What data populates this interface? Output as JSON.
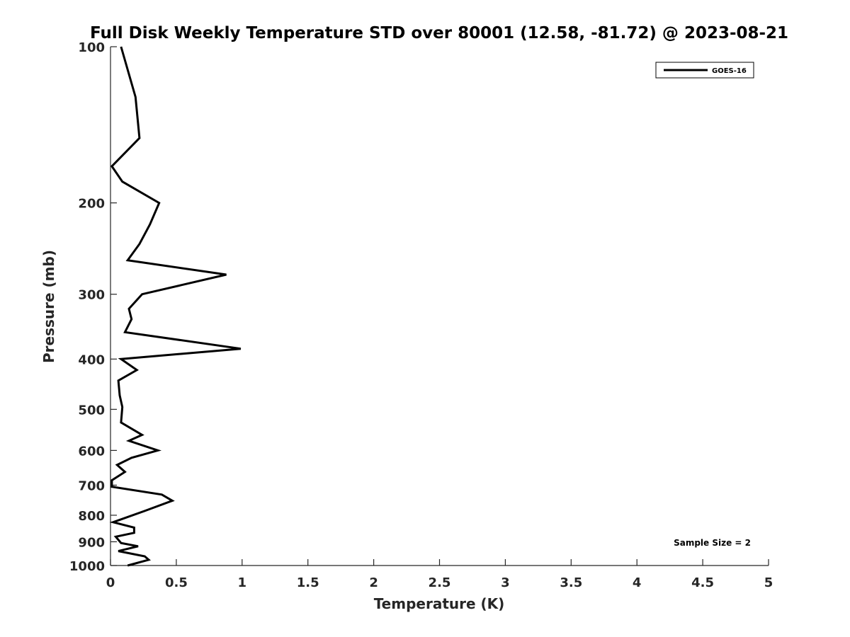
{
  "chart_data": {
    "type": "line",
    "title": "Full Disk Weekly Temperature STD over 80001 (12.58, -81.72) @ 2023-08-21",
    "xlabel": "Temperature (K)",
    "ylabel": "Pressure (mb)",
    "xlim": [
      0,
      5
    ],
    "ylim": [
      100,
      1000
    ],
    "y_scale": "log",
    "y_reversed": true,
    "x_ticks": [
      0,
      0.5,
      1,
      1.5,
      2,
      2.5,
      3,
      3.5,
      4,
      4.5,
      5
    ],
    "x_tick_labels": [
      "0",
      "0.5",
      "1",
      "1.5",
      "2",
      "2.5",
      "3",
      "3.5",
      "4",
      "4.5",
      "5"
    ],
    "y_ticks": [
      100,
      200,
      300,
      400,
      500,
      600,
      700,
      800,
      900,
      1000
    ],
    "y_tick_labels": [
      "100",
      "200",
      "300",
      "400",
      "500",
      "600",
      "700",
      "800",
      "900",
      "1000"
    ],
    "grid": false,
    "legend_position": "top-right",
    "series": [
      {
        "name": "GOES-16",
        "color": "#000000",
        "points": [
          [
            0.08,
            100
          ],
          [
            0.19,
            125
          ],
          [
            0.22,
            150
          ],
          [
            0.01,
            170
          ],
          [
            0.09,
            182
          ],
          [
            0.37,
            200
          ],
          [
            0.3,
            220
          ],
          [
            0.22,
            240
          ],
          [
            0.13,
            258
          ],
          [
            0.88,
            275
          ],
          [
            0.24,
            300
          ],
          [
            0.14,
            320
          ],
          [
            0.16,
            335
          ],
          [
            0.11,
            355
          ],
          [
            0.99,
            382
          ],
          [
            0.08,
            400
          ],
          [
            0.2,
            420
          ],
          [
            0.06,
            440
          ],
          [
            0.07,
            470
          ],
          [
            0.09,
            495
          ],
          [
            0.08,
            530
          ],
          [
            0.24,
            560
          ],
          [
            0.14,
            575
          ],
          [
            0.36,
            600
          ],
          [
            0.16,
            620
          ],
          [
            0.05,
            640
          ],
          [
            0.11,
            660
          ],
          [
            0.01,
            685
          ],
          [
            0.01,
            705
          ],
          [
            0.39,
            730
          ],
          [
            0.47,
            750
          ],
          [
            0.26,
            785
          ],
          [
            0.02,
            825
          ],
          [
            0.18,
            845
          ],
          [
            0.18,
            865
          ],
          [
            0.04,
            880
          ],
          [
            0.08,
            905
          ],
          [
            0.21,
            918
          ],
          [
            0.06,
            938
          ],
          [
            0.26,
            960
          ],
          [
            0.29,
            975
          ],
          [
            0.13,
            1000
          ]
        ]
      }
    ],
    "annotation": "Sample Size = 2"
  }
}
